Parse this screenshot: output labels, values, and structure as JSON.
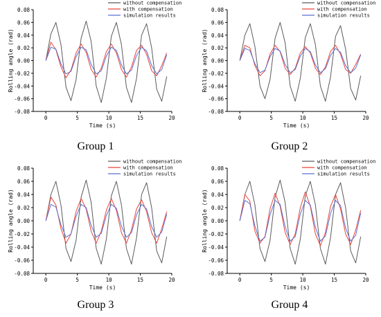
{
  "colors": {
    "without": "#5a5a5a",
    "with": "#e8443a",
    "simulation": "#5a6fd0"
  },
  "chart_data": [
    {
      "type": "line",
      "caption": "Group 1",
      "xlabel": "Time (s)",
      "ylabel": "Rolling angle (rad)",
      "xlim": [
        -2,
        20
      ],
      "ylim": [
        -0.08,
        0.08
      ],
      "xticks": [
        0,
        5,
        10,
        15,
        20
      ],
      "yticks": [
        -0.08,
        -0.06,
        -0.04,
        -0.02,
        0.0,
        0.02,
        0.04,
        0.06,
        0.08
      ],
      "ytick_labels": [
        "-0.08",
        "-0.06",
        "-0.04",
        "-0.02",
        "0.00",
        "0.02",
        "0.04",
        "0.06",
        "0.08"
      ],
      "legend": "top-right",
      "grid": false,
      "series": [
        {
          "name": "without compensation",
          "x": [
            0,
            0.8,
            1.6,
            2.4,
            3.2,
            4,
            4.8,
            5.6,
            6.4,
            7.2,
            8,
            8.8,
            9.6,
            10.4,
            11.2,
            12,
            12.8,
            13.6,
            14.4,
            15.2,
            16,
            16.8,
            17.6,
            18.4,
            19.2
          ],
          "y": [
            0,
            0.042,
            0.06,
            0.025,
            -0.042,
            -0.063,
            -0.03,
            0.035,
            0.062,
            0.03,
            -0.04,
            -0.066,
            -0.028,
            0.038,
            0.06,
            0.025,
            -0.042,
            -0.066,
            -0.028,
            0.04,
            0.058,
            0.02,
            -0.045,
            -0.064,
            -0.025
          ]
        },
        {
          "name": "with compensation",
          "x": [
            0,
            0.8,
            1.6,
            2.4,
            3.2,
            4,
            4.8,
            5.6,
            6.4,
            7.2,
            8,
            8.8,
            9.6,
            10.4,
            11.2,
            12,
            12.8,
            13.6,
            14.4,
            15.2,
            16,
            16.8,
            17.6,
            18.4,
            19.2
          ],
          "y": [
            0,
            0.029,
            0.017,
            -0.01,
            -0.027,
            -0.015,
            0.012,
            0.026,
            0.013,
            -0.014,
            -0.026,
            -0.012,
            0.014,
            0.026,
            0.012,
            -0.014,
            -0.026,
            -0.01,
            0.016,
            0.024,
            0.01,
            -0.016,
            -0.024,
            -0.008,
            0.012
          ]
        },
        {
          "name": "simulation results",
          "x": [
            0,
            0.8,
            1.6,
            2.4,
            3.2,
            4,
            4.8,
            5.6,
            6.4,
            7.2,
            8,
            8.8,
            9.6,
            10.4,
            11.2,
            12,
            12.8,
            13.6,
            14.4,
            15.2,
            16,
            16.8,
            17.6,
            18.4,
            19.2
          ],
          "y": [
            0,
            0.021,
            0.018,
            -0.005,
            -0.021,
            -0.017,
            0.006,
            0.021,
            0.017,
            -0.006,
            -0.021,
            -0.016,
            0.007,
            0.021,
            0.016,
            -0.007,
            -0.021,
            -0.015,
            0.008,
            0.021,
            0.015,
            -0.008,
            -0.021,
            -0.014,
            0.009
          ]
        }
      ]
    },
    {
      "type": "line",
      "caption": "Group 2",
      "xlabel": "Time (s)",
      "ylabel": "Rolling angle (rad)",
      "xlim": [
        -2,
        20
      ],
      "ylim": [
        -0.08,
        0.08
      ],
      "xticks": [
        0,
        5,
        10,
        15,
        20
      ],
      "yticks": [
        -0.08,
        -0.06,
        -0.04,
        -0.02,
        0.0,
        0.02,
        0.04,
        0.06,
        0.08
      ],
      "ytick_labels": [
        "-0.08",
        "-0.06",
        "-0.04",
        "-0.02",
        "0.00",
        "0.02",
        "0.04",
        "0.06",
        "0.08"
      ],
      "legend": "top-right",
      "grid": false,
      "series": [
        {
          "name": "without compensation",
          "x": [
            0,
            0.8,
            1.6,
            2.4,
            3.2,
            4,
            4.8,
            5.6,
            6.4,
            7.2,
            8,
            8.8,
            9.6,
            10.4,
            11.2,
            12,
            12.8,
            13.6,
            14.4,
            15.2,
            16,
            16.8,
            17.6,
            18.4,
            19.2
          ],
          "y": [
            0,
            0.04,
            0.058,
            0.022,
            -0.04,
            -0.06,
            -0.03,
            0.035,
            0.06,
            0.028,
            -0.04,
            -0.064,
            -0.028,
            0.036,
            0.058,
            0.025,
            -0.04,
            -0.064,
            -0.026,
            0.038,
            0.055,
            0.018,
            -0.044,
            -0.062,
            -0.024
          ]
        },
        {
          "name": "with compensation",
          "x": [
            0,
            0.8,
            1.6,
            2.4,
            3.2,
            4,
            4.8,
            5.6,
            6.4,
            7.2,
            8,
            8.8,
            9.6,
            10.4,
            11.2,
            12,
            12.8,
            13.6,
            14.4,
            15.2,
            16,
            16.8,
            17.6,
            18.4,
            19.2
          ],
          "y": [
            0,
            0.024,
            0.02,
            -0.008,
            -0.024,
            -0.016,
            0.01,
            0.024,
            0.014,
            -0.012,
            -0.022,
            -0.012,
            0.012,
            0.022,
            0.012,
            -0.012,
            -0.022,
            -0.01,
            0.014,
            0.024,
            0.01,
            -0.014,
            -0.02,
            -0.006,
            0.01
          ]
        },
        {
          "name": "simulation results",
          "x": [
            0,
            0.8,
            1.6,
            2.4,
            3.2,
            4,
            4.8,
            5.6,
            6.4,
            7.2,
            8,
            8.8,
            9.6,
            10.4,
            11.2,
            12,
            12.8,
            13.6,
            14.4,
            15.2,
            16,
            16.8,
            17.6,
            18.4,
            19.2
          ],
          "y": [
            0,
            0.019,
            0.016,
            -0.005,
            -0.019,
            -0.015,
            0.006,
            0.019,
            0.015,
            -0.006,
            -0.019,
            -0.014,
            0.007,
            0.019,
            0.014,
            -0.007,
            -0.019,
            -0.013,
            0.008,
            0.019,
            0.013,
            -0.008,
            -0.019,
            -0.012,
            0.009
          ]
        }
      ]
    },
    {
      "type": "line",
      "caption": "Group 3",
      "xlabel": "Time (s)",
      "ylabel": "Rolling angle (rad)",
      "xlim": [
        -2,
        20
      ],
      "ylim": [
        -0.08,
        0.08
      ],
      "xticks": [
        0,
        5,
        10,
        15,
        20
      ],
      "yticks": [
        -0.08,
        -0.06,
        -0.04,
        -0.02,
        0.0,
        0.02,
        0.04,
        0.06,
        0.08
      ],
      "ytick_labels": [
        "-0.08",
        "-0.06",
        "-0.04",
        "-0.02",
        "0.00",
        "0.02",
        "0.04",
        "0.06",
        "0.08"
      ],
      "legend": "top-right",
      "grid": false,
      "series": [
        {
          "name": "without compensation",
          "x": [
            0,
            0.8,
            1.6,
            2.4,
            3.2,
            4,
            4.8,
            5.6,
            6.4,
            7.2,
            8,
            8.8,
            9.6,
            10.4,
            11.2,
            12,
            12.8,
            13.6,
            14.4,
            15.2,
            16,
            16.8,
            17.6,
            18.4,
            19.2
          ],
          "y": [
            0,
            0.04,
            0.06,
            0.024,
            -0.042,
            -0.062,
            -0.03,
            0.036,
            0.062,
            0.028,
            -0.042,
            -0.066,
            -0.028,
            0.038,
            0.06,
            0.024,
            -0.042,
            -0.066,
            -0.026,
            0.04,
            0.058,
            0.02,
            -0.046,
            -0.064,
            -0.024
          ]
        },
        {
          "name": "with compensation",
          "x": [
            0,
            0.8,
            1.6,
            2.4,
            3.2,
            4,
            4.8,
            5.6,
            6.4,
            7.2,
            8,
            8.8,
            9.6,
            10.4,
            11.2,
            12,
            12.8,
            13.6,
            14.4,
            15.2,
            16,
            16.8,
            17.6,
            18.4,
            19.2
          ],
          "y": [
            0,
            0.036,
            0.024,
            -0.012,
            -0.034,
            -0.02,
            0.014,
            0.034,
            0.018,
            -0.016,
            -0.034,
            -0.016,
            0.016,
            0.034,
            0.016,
            -0.018,
            -0.034,
            -0.014,
            0.018,
            0.032,
            0.014,
            -0.018,
            -0.034,
            -0.012,
            0.014
          ]
        },
        {
          "name": "simulation results",
          "x": [
            0,
            0.8,
            1.6,
            2.4,
            3.2,
            4,
            4.8,
            5.6,
            6.4,
            7.2,
            8,
            8.8,
            9.6,
            10.4,
            11.2,
            12,
            12.8,
            13.6,
            14.4,
            15.2,
            16,
            16.8,
            17.6,
            18.4,
            19.2
          ],
          "y": [
            0,
            0.025,
            0.021,
            -0.006,
            -0.025,
            -0.02,
            0.007,
            0.025,
            0.02,
            -0.007,
            -0.025,
            -0.019,
            0.008,
            0.025,
            0.019,
            -0.008,
            -0.025,
            -0.018,
            0.009,
            0.025,
            0.018,
            -0.009,
            -0.025,
            -0.017,
            0.01
          ]
        }
      ]
    },
    {
      "type": "line",
      "caption": "Group 4",
      "xlabel": "Time (s)",
      "ylabel": "Rolling angle (rad)",
      "xlim": [
        -2,
        20
      ],
      "ylim": [
        -0.08,
        0.08
      ],
      "xticks": [
        0,
        5,
        10,
        15,
        20
      ],
      "yticks": [
        -0.08,
        -0.06,
        -0.04,
        -0.02,
        0.0,
        0.02,
        0.04,
        0.06,
        0.08
      ],
      "ytick_labels": [
        "-0.08",
        "-0.06",
        "-0.04",
        "-0.02",
        "0.00",
        "0.02",
        "0.04",
        "0.06",
        "0.08"
      ],
      "legend": "top-right",
      "grid": false,
      "series": [
        {
          "name": "without compensation",
          "x": [
            0,
            0.8,
            1.6,
            2.4,
            3.2,
            4,
            4.8,
            5.6,
            6.4,
            7.2,
            8,
            8.8,
            9.6,
            10.4,
            11.2,
            12,
            12.8,
            13.6,
            14.4,
            15.2,
            16,
            16.8,
            17.6,
            18.4,
            19.2
          ],
          "y": [
            0,
            0.04,
            0.06,
            0.024,
            -0.042,
            -0.062,
            -0.03,
            0.036,
            0.062,
            0.028,
            -0.042,
            -0.066,
            -0.028,
            0.038,
            0.06,
            0.024,
            -0.042,
            -0.066,
            -0.026,
            0.04,
            0.058,
            0.02,
            -0.046,
            -0.064,
            -0.024
          ]
        },
        {
          "name": "with compensation",
          "x": [
            0,
            0.8,
            1.6,
            2.4,
            3.2,
            4,
            4.8,
            5.6,
            6.4,
            7.2,
            8,
            8.8,
            9.6,
            10.4,
            11.2,
            12,
            12.8,
            13.6,
            14.4,
            15.2,
            16,
            16.8,
            17.6,
            18.4,
            19.2
          ],
          "y": [
            0,
            0.04,
            0.03,
            -0.016,
            -0.034,
            -0.024,
            0.018,
            0.042,
            0.022,
            -0.018,
            -0.036,
            -0.02,
            0.02,
            0.044,
            0.022,
            -0.02,
            -0.038,
            -0.018,
            0.022,
            0.04,
            0.018,
            -0.02,
            -0.036,
            -0.014,
            0.016
          ]
        },
        {
          "name": "simulation results",
          "x": [
            0,
            0.8,
            1.6,
            2.4,
            3.2,
            4,
            4.8,
            5.6,
            6.4,
            7.2,
            8,
            8.8,
            9.6,
            10.4,
            11.2,
            12,
            12.8,
            13.6,
            14.4,
            15.2,
            16,
            16.8,
            17.6,
            18.4,
            19.2
          ],
          "y": [
            0,
            0.031,
            0.026,
            -0.008,
            -0.031,
            -0.025,
            0.009,
            0.031,
            0.025,
            -0.009,
            -0.031,
            -0.024,
            0.01,
            0.031,
            0.024,
            -0.01,
            -0.031,
            -0.023,
            0.011,
            0.031,
            0.023,
            -0.011,
            -0.031,
            -0.022,
            0.012
          ]
        }
      ]
    }
  ]
}
